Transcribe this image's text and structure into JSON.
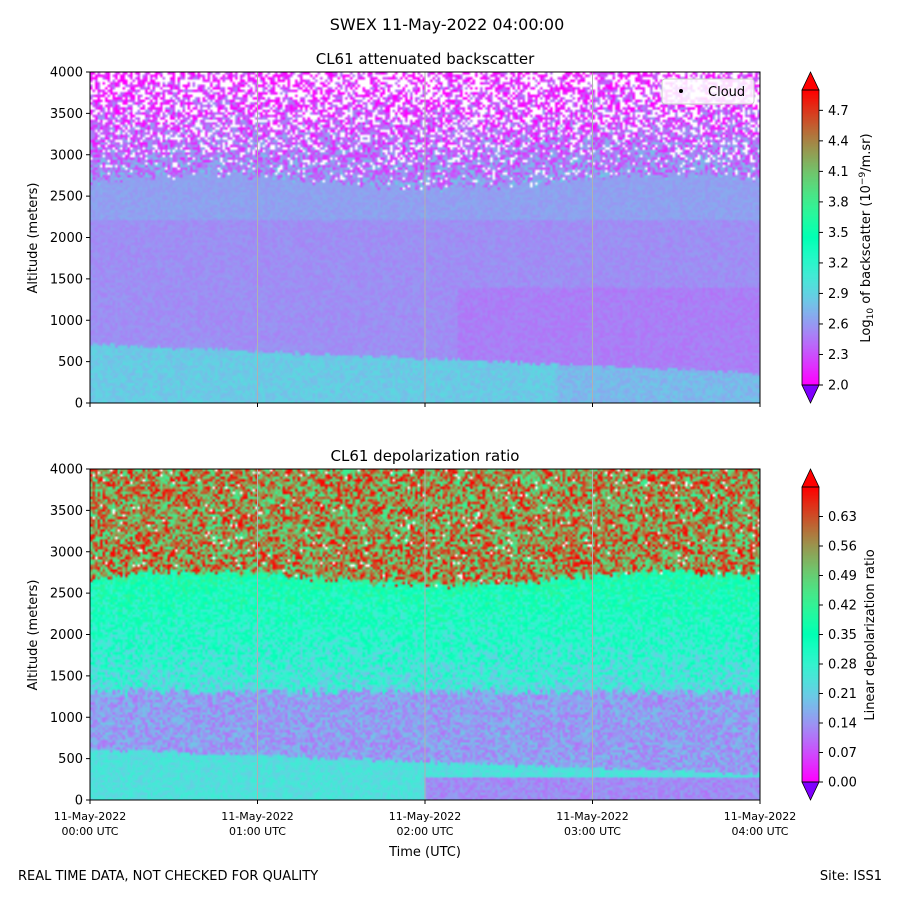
{
  "figure": {
    "suptitle": "SWEX 11-May-2022 04:00:00",
    "footer_left": "REAL TIME DATA, NOT CHECKED FOR QUALITY",
    "footer_right": "Site: ISS1"
  },
  "chart_data": [
    {
      "type": "heatmap",
      "title": "CL61 attenuated backscatter",
      "xlabel": "",
      "ylabel": "Altitude (meters)",
      "ylim": [
        0,
        4000
      ],
      "yticks": [
        0,
        500,
        1000,
        1500,
        2000,
        2500,
        3000,
        3500,
        4000
      ],
      "xlim_hours": [
        0,
        4
      ],
      "xticks_hours": [
        0,
        1,
        2,
        3,
        4
      ],
      "grid": "vertical",
      "legend": {
        "label": "Cloud",
        "placement": "top-right"
      },
      "colorbar": {
        "label_prefix": "Log",
        "label_sub": "10",
        "label_mid": " of backscatter (10",
        "label_sup": "−9",
        "label_suffix": "/m.sr)",
        "range": [
          2.0,
          4.9
        ],
        "ticks": [
          "2.0",
          "2.3",
          "2.6",
          "2.9",
          "3.2",
          "3.5",
          "3.8",
          "4.1",
          "4.4",
          "4.7"
        ],
        "extend": "both",
        "colormap": "rainbow"
      },
      "profile_description": {
        "surface_layer": {
          "alt_top": [
            700,
            350
          ],
          "value": 2.85
        },
        "aerosol_layer": {
          "alt_top": [
            2800,
            2900
          ],
          "value": 2.55
        },
        "noise_region": {
          "alt_bottom": 2800,
          "alt_top": 4000,
          "value_range": [
            2.0,
            2.6
          ]
        }
      }
    },
    {
      "type": "heatmap",
      "title": "CL61 depolarization ratio",
      "xlabel": "Time (UTC)",
      "ylabel": "Altitude (meters)",
      "ylim": [
        0,
        4000
      ],
      "yticks": [
        0,
        500,
        1000,
        1500,
        2000,
        2500,
        3000,
        3500,
        4000
      ],
      "xlim_hours": [
        0,
        4
      ],
      "xticks_hours": [
        0,
        1,
        2,
        3,
        4
      ],
      "xtick_labels": [
        [
          "11-May-2022",
          "00:00 UTC"
        ],
        [
          "11-May-2022",
          "01:00 UTC"
        ],
        [
          "11-May-2022",
          "02:00 UTC"
        ],
        [
          "11-May-2022",
          "03:00 UTC"
        ],
        [
          "11-May-2022",
          "04:00 UTC"
        ]
      ],
      "grid": "vertical",
      "colorbar": {
        "label": "Linear depolarization ratio",
        "range": [
          0.0,
          0.7
        ],
        "ticks": [
          "0.00",
          "0.07",
          "0.14",
          "0.21",
          "0.28",
          "0.35",
          "0.42",
          "0.49",
          "0.56",
          "0.63"
        ],
        "extend": "both",
        "colormap": "rainbow"
      },
      "profile_description": {
        "surface_layer": {
          "alt_top": [
            600,
            300
          ],
          "value": 0.24
        },
        "low_layer": {
          "alt_top": 1300,
          "value": 0.15
        },
        "mid_layer": {
          "alt_top": 2800,
          "value_range": [
            0.25,
            0.4
          ]
        },
        "noise_region": {
          "alt_bottom": 2800,
          "alt_top": 4000,
          "value_range": [
            0.42,
            0.7
          ]
        }
      }
    }
  ]
}
